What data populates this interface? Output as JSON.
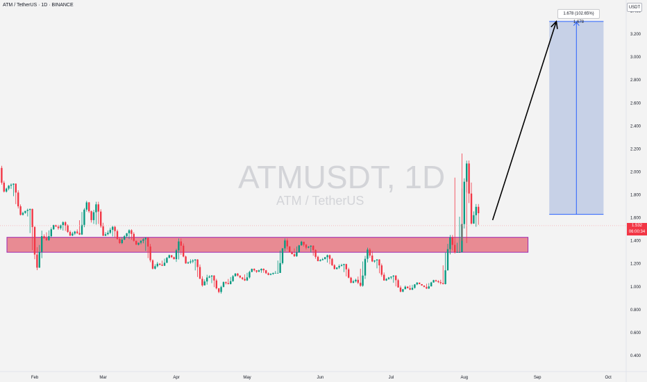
{
  "chart_info": {
    "title": "ATM / TetherUS · 1D · BINANCE",
    "watermark_symbol": "ATMUSDT, 1D",
    "watermark_name": "ATM / TetherUS",
    "unit": "USDT"
  },
  "price_label": {
    "price": "1.532",
    "countdown": "06:00:34"
  },
  "measure_label": "1.678 (102.65%) 1,678",
  "colors": {
    "up": "#089981",
    "down": "#f23645",
    "zone_fill": "#e88b93",
    "zone_border": "#9c27b0",
    "measure_fill": "#c2cde6",
    "measure_line": "#2962ff",
    "arrow": "#000000",
    "price_line": "#f7a8ae"
  },
  "chart_data": {
    "type": "candlestick",
    "title": "ATM / TetherUS · 1D · BINANCE",
    "x_axis": {
      "ticks": [
        "Feb",
        "Mar",
        "Apr",
        "May",
        "Jun",
        "Jul",
        "Aug",
        "Sep",
        "Oct"
      ]
    },
    "y_axis": {
      "ticks": [
        "0.400",
        "0.600",
        "0.800",
        "1.000",
        "1.200",
        "1.400",
        "1.600",
        "1.800",
        "2.000",
        "2.200",
        "2.400",
        "2.600",
        "2.800",
        "3.000",
        "3.200",
        "3.400"
      ],
      "range": [
        0.33,
        3.45
      ],
      "unit": "USDT"
    },
    "ohlc_weekly": [
      {
        "week_of": "2024-01-15",
        "open": 2.1,
        "high": 2.12,
        "low": 1.82,
        "close": 1.88
      },
      {
        "week_of": "2024-01-22",
        "open": 1.88,
        "high": 1.9,
        "low": 1.62,
        "close": 1.66
      },
      {
        "week_of": "2024-01-29",
        "open": 1.66,
        "high": 1.68,
        "low": 1.12,
        "close": 1.44
      },
      {
        "week_of": "2024-02-05",
        "open": 1.44,
        "high": 1.54,
        "low": 1.4,
        "close": 1.51
      },
      {
        "week_of": "2024-02-12",
        "open": 1.51,
        "high": 1.57,
        "low": 1.44,
        "close": 1.48
      },
      {
        "week_of": "2024-02-19",
        "open": 1.48,
        "high": 1.76,
        "low": 1.45,
        "close": 1.58
      },
      {
        "week_of": "2024-02-26",
        "open": 1.58,
        "high": 1.74,
        "low": 1.44,
        "close": 1.47
      },
      {
        "week_of": "2024-03-04",
        "open": 1.47,
        "high": 1.53,
        "low": 1.37,
        "close": 1.44
      },
      {
        "week_of": "2024-03-11",
        "open": 1.44,
        "high": 1.5,
        "low": 1.36,
        "close": 1.4
      },
      {
        "week_of": "2024-03-18",
        "open": 1.4,
        "high": 1.43,
        "low": 1.15,
        "close": 1.2
      },
      {
        "week_of": "2024-03-25",
        "open": 1.2,
        "high": 1.28,
        "low": 1.18,
        "close": 1.24
      },
      {
        "week_of": "2024-04-01",
        "open": 1.24,
        "high": 1.42,
        "low": 1.2,
        "close": 1.22
      },
      {
        "week_of": "2024-04-08",
        "open": 1.22,
        "high": 1.24,
        "low": 1.0,
        "close": 1.08
      },
      {
        "week_of": "2024-04-15",
        "open": 1.08,
        "high": 1.1,
        "low": 0.94,
        "close": 1.04
      },
      {
        "week_of": "2024-04-22",
        "open": 1.04,
        "high": 1.12,
        "low": 1.02,
        "close": 1.08
      },
      {
        "week_of": "2024-04-29",
        "open": 1.08,
        "high": 1.16,
        "low": 1.05,
        "close": 1.13
      },
      {
        "week_of": "2024-05-06",
        "open": 1.13,
        "high": 1.16,
        "low": 1.1,
        "close": 1.12
      },
      {
        "week_of": "2024-05-13",
        "open": 1.12,
        "high": 1.42,
        "low": 1.12,
        "close": 1.3
      },
      {
        "week_of": "2024-05-20",
        "open": 1.3,
        "high": 1.4,
        "low": 1.26,
        "close": 1.34
      },
      {
        "week_of": "2024-05-27",
        "open": 1.34,
        "high": 1.36,
        "low": 1.22,
        "close": 1.24
      },
      {
        "week_of": "2024-06-03",
        "open": 1.24,
        "high": 1.28,
        "low": 1.15,
        "close": 1.18
      },
      {
        "week_of": "2024-06-10",
        "open": 1.18,
        "high": 1.2,
        "low": 1.03,
        "close": 1.06
      },
      {
        "week_of": "2024-06-17",
        "open": 1.06,
        "high": 1.34,
        "low": 1.0,
        "close": 1.22
      },
      {
        "week_of": "2024-06-24",
        "open": 1.22,
        "high": 1.24,
        "low": 1.05,
        "close": 1.08
      },
      {
        "week_of": "2024-07-01",
        "open": 1.08,
        "high": 1.1,
        "low": 0.95,
        "close": 1.0
      },
      {
        "week_of": "2024-07-08",
        "open": 1.0,
        "high": 1.04,
        "low": 0.97,
        "close": 1.01
      },
      {
        "week_of": "2024-07-15",
        "open": 1.01,
        "high": 1.06,
        "low": 0.98,
        "close": 1.04
      },
      {
        "week_of": "2024-07-22",
        "open": 1.04,
        "high": 1.45,
        "low": 1.02,
        "close": 1.3
      },
      {
        "week_of": "2024-07-29",
        "open": 1.3,
        "high": 2.16,
        "low": 1.3,
        "close": 1.55
      },
      {
        "week_of": "2024-08-05",
        "open": 1.55,
        "high": 1.72,
        "low": 1.44,
        "close": 1.532
      }
    ],
    "zone": {
      "low": 1.3,
      "high": 1.43,
      "from": "2024-01-10",
      "to": "2024-08-28"
    },
    "measure": {
      "low": 1.63,
      "high": 3.31,
      "from": "2024-09-06",
      "to": "2024-09-29",
      "label": "1.678 (102.65%) 1,678"
    },
    "arrow": {
      "from_date": "2024-08-13",
      "from_price": 1.58,
      "to_date": "2024-09-09",
      "to_price": 3.31
    },
    "last_price": 1.532
  }
}
